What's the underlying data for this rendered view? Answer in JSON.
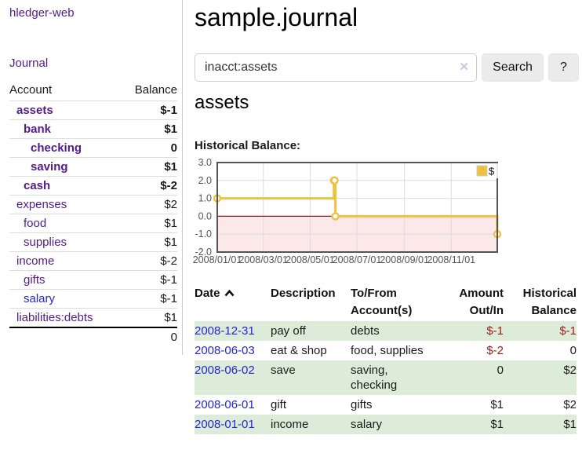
{
  "app": {
    "title": "hledger-web"
  },
  "colors": {
    "link_purple": "#551a8b",
    "link_blue": "#2525d6",
    "negative_strong": "#971616",
    "negative_muted": "#b36d6d",
    "table_negative": "#9b1b1b",
    "stripe_green": "#ddecd9",
    "button_bg": "#ebebeb"
  },
  "sidebar": {
    "journal_link": "Journal",
    "table_header": {
      "account": "Account",
      "balance": "Balance"
    },
    "accounts": [
      {
        "name": "assets",
        "depth": 1,
        "balance": "$-1",
        "bold": true,
        "balance_tone": "negative-strong"
      },
      {
        "name": "bank",
        "depth": 2,
        "balance": "$1",
        "bold": true,
        "balance_tone": "normal"
      },
      {
        "name": "checking",
        "depth": 3,
        "balance": "0",
        "bold": true,
        "balance_tone": "normal"
      },
      {
        "name": "saving",
        "depth": 3,
        "balance": "$1",
        "bold": true,
        "balance_tone": "normal"
      },
      {
        "name": "cash",
        "depth": 2,
        "balance": "$-2",
        "bold": true,
        "balance_tone": "negative-strong"
      },
      {
        "name": "expenses",
        "depth": 1,
        "balance": "$2",
        "bold": false,
        "balance_tone": "normal"
      },
      {
        "name": "food",
        "depth": 2,
        "balance": "$1",
        "bold": false,
        "balance_tone": "normal"
      },
      {
        "name": "supplies",
        "depth": 2,
        "balance": "$1",
        "bold": false,
        "balance_tone": "normal"
      },
      {
        "name": "income",
        "depth": 1,
        "balance": "$-2",
        "bold": false,
        "balance_tone": "negative-muted"
      },
      {
        "name": "gifts",
        "depth": 2,
        "balance": "$-1",
        "bold": false,
        "balance_tone": "negative-muted"
      },
      {
        "name": "salary",
        "depth": 2,
        "balance": "$-1",
        "bold": false,
        "balance_tone": "negative-muted",
        "link_tone": "blue"
      },
      {
        "name": "liabilities:debts",
        "depth": 1,
        "balance": "$1",
        "bold": false,
        "balance_tone": "normal"
      }
    ],
    "total": "0"
  },
  "main": {
    "title": "sample.journal",
    "search": {
      "value": "inacct:assets",
      "clear_icon": "✕",
      "search_button": "Search",
      "help_button": "?"
    },
    "account_title": "assets",
    "chart_title": "Historical Balance:"
  },
  "chart_data": {
    "type": "line",
    "step": true,
    "title": "Historical Balance",
    "series": [
      {
        "name": "$",
        "color": "#EDC240",
        "points": [
          [
            "2008-01-01",
            1
          ],
          [
            "2008-06-01",
            2
          ],
          [
            "2008-06-02",
            2
          ],
          [
            "2008-06-03",
            0
          ],
          [
            "2008-12-31",
            -1
          ]
        ]
      }
    ],
    "x_range": [
      "2008-01-01",
      "2008-12-31"
    ],
    "ylim": [
      -2,
      3
    ],
    "yticks": [
      {
        "value": 3,
        "label": "3.0"
      },
      {
        "value": 2,
        "label": "2.0"
      },
      {
        "value": 1,
        "label": "1.0"
      },
      {
        "value": 0,
        "label": "0.0"
      },
      {
        "value": -1,
        "label": "-1.0"
      },
      {
        "value": -2,
        "label": "-2.0"
      }
    ],
    "xticks": [
      {
        "date": "2008-01-01",
        "label": "2008/01/01"
      },
      {
        "date": "2008-03-01",
        "label": "2008/03/01"
      },
      {
        "date": "2008-05-01",
        "label": "2008/05/01"
      },
      {
        "date": "2008-07-01",
        "label": "2008/07/01"
      },
      {
        "date": "2008-09-01",
        "label": "2008/09/01"
      },
      {
        "date": "2008-11-01",
        "label": "2008/11/01"
      }
    ],
    "legend": {
      "label": "$",
      "position": "top-right"
    },
    "grid": true,
    "colors": {
      "border": "#545454",
      "gridline": "#dcdcdc",
      "tick_text": "#545454",
      "negative_region": "#fce8e8",
      "zero_line": "#8b1a1a",
      "marker_fill": "#ffffff"
    }
  },
  "register": {
    "columns": [
      {
        "label": "Date",
        "align": "left",
        "sorted_asc": true
      },
      {
        "label": "Description",
        "align": "left"
      },
      {
        "label": "To/From Account(s)",
        "align": "left"
      },
      {
        "label": "Amount Out/In",
        "align": "right"
      },
      {
        "label": "Historical Balance",
        "align": "right"
      }
    ],
    "rows": [
      {
        "date": "2008-12-31",
        "description": "pay off",
        "accounts": "debts",
        "amount": "$-1",
        "amount_negative": true,
        "balance": "$-1",
        "balance_negative": true
      },
      {
        "date": "2008-06-03",
        "description": "eat & shop",
        "accounts": "food, supplies",
        "amount": "$-2",
        "amount_negative": true,
        "balance": "0",
        "balance_negative": false
      },
      {
        "date": "2008-06-02",
        "description": "save",
        "accounts": "saving, checking",
        "amount": "0",
        "amount_negative": false,
        "balance": "$2",
        "balance_negative": false
      },
      {
        "date": "2008-06-01",
        "description": "gift",
        "accounts": "gifts",
        "amount": "$1",
        "amount_negative": false,
        "balance": "$2",
        "balance_negative": false
      },
      {
        "date": "2008-01-01",
        "description": "income",
        "accounts": "salary",
        "amount": "$1",
        "amount_negative": false,
        "balance": "$1",
        "balance_negative": false
      }
    ]
  }
}
